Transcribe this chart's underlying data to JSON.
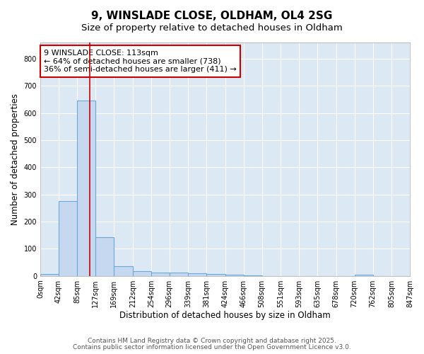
{
  "title1": "9, WINSLADE CLOSE, OLDHAM, OL4 2SG",
  "title2": "Size of property relative to detached houses in Oldham",
  "xlabel": "Distribution of detached houses by size in Oldham",
  "ylabel": "Number of detached properties",
  "bin_edges": [
    0,
    42,
    85,
    127,
    169,
    212,
    254,
    296,
    339,
    381,
    424,
    466,
    508,
    551,
    593,
    635,
    678,
    720,
    762,
    805,
    847
  ],
  "bar_heights": [
    8,
    275,
    645,
    143,
    37,
    18,
    12,
    11,
    10,
    8,
    5,
    2,
    0,
    0,
    0,
    0,
    0,
    5,
    0,
    0
  ],
  "bar_color": "#c5d8f0",
  "bar_edgecolor": "#6aaad4",
  "bar_alpha": 1.0,
  "vline_x": 113,
  "vline_color": "#cc0000",
  "annotation_text": "9 WINSLADE CLOSE: 113sqm\n← 64% of detached houses are smaller (738)\n36% of semi-detached houses are larger (411) →",
  "annotation_box_color": "#ffffff",
  "annotation_box_edgecolor": "#cc0000",
  "ylim": [
    0,
    860
  ],
  "yticks": [
    0,
    100,
    200,
    300,
    400,
    500,
    600,
    700,
    800
  ],
  "fig_background_color": "#ffffff",
  "plot_background_color": "#dde8f5",
  "grid_color": "#ffffff",
  "footnote1": "Contains HM Land Registry data © Crown copyright and database right 2025.",
  "footnote2": "Contains public sector information licensed under the Open Government Licence v3.0.",
  "title_fontsize": 11,
  "subtitle_fontsize": 9.5,
  "tick_label_fontsize": 7,
  "axis_label_fontsize": 8.5,
  "annotation_fontsize": 8,
  "footnote_fontsize": 6.5
}
